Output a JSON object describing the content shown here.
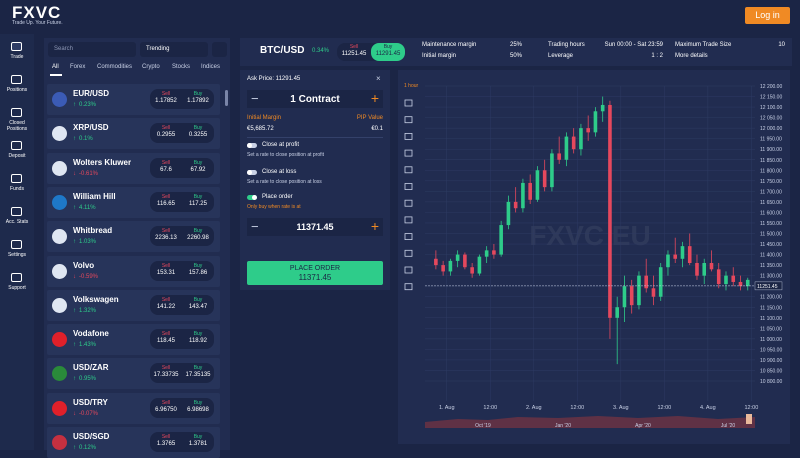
{
  "header": {
    "logo": "FXVC",
    "tagline": "Trade Up. Your Future.",
    "login": "Log in"
  },
  "sidebar": [
    "Trade",
    "Positions",
    "Closed Positions",
    "Deposit",
    "Funds",
    "Acc. Stats",
    "Settings",
    "Support"
  ],
  "instruments": {
    "search": "Search",
    "filter": "Trending",
    "tabs": [
      "All",
      "Forex",
      "Commodities",
      "Crypto",
      "Stocks",
      "Indices"
    ],
    "sell_label": "Sell",
    "buy_label": "Buy",
    "rows": [
      {
        "name": "EUR/USD",
        "change": "0.23%",
        "sell": "1.17852",
        "buy": "1.17892"
      },
      {
        "name": "XRP/USD",
        "change": "0.1%",
        "sell": "0.2955",
        "buy": "0.3255"
      },
      {
        "name": "Wolters Kluwer",
        "change": "-0.61%",
        "sell": "67.6",
        "buy": "67.92"
      },
      {
        "name": "William Hill",
        "change": "4.11%",
        "sell": "116.65",
        "buy": "117.25"
      },
      {
        "name": "Whitbread",
        "change": "1.03%",
        "sell": "2236.13",
        "buy": "2260.98"
      },
      {
        "name": "Volvo",
        "change": "-0.59%",
        "sell": "153.31",
        "buy": "157.86"
      },
      {
        "name": "Volkswagen",
        "change": "1.32%",
        "sell": "141.22",
        "buy": "143.47"
      },
      {
        "name": "Vodafone",
        "change": "1.43%",
        "sell": "118.45",
        "buy": "118.92"
      },
      {
        "name": "USD/ZAR",
        "change": "0.95%",
        "sell": "17.33735",
        "buy": "17.35135"
      },
      {
        "name": "USD/TRY",
        "change": "-0.07%",
        "sell": "6.96750",
        "buy": "6.98698"
      },
      {
        "name": "USD/SGD",
        "change": "0.12%",
        "sell": "1.3765",
        "buy": "1.3781"
      }
    ]
  },
  "symbol": {
    "name": "BTC/USD",
    "change": "0.34%",
    "sell_label": "Sell",
    "sell": "11251.45",
    "buy_label": "Buy",
    "buy": "11291.45",
    "info": [
      {
        "label": "Maintenance margin",
        "value": "25%"
      },
      {
        "label": "Initial margin",
        "value": "50%"
      },
      {
        "label": "Trading hours",
        "value": "Sun 00:00 - Sat 23:59"
      },
      {
        "label": "Leverage",
        "value": "1 : 2"
      },
      {
        "label": "Maximum Trade Size",
        "value": "10"
      }
    ],
    "more": "More details"
  },
  "order": {
    "ask": "Ask Price: 11291.45",
    "quantity": "1 Contract",
    "margin_label": "Initial Margin",
    "pip_label": "PIP Value",
    "margin": "€5,685.72",
    "pip": "€0.1",
    "profit": "Close at profit",
    "profit_hint": "Set a rate to close position at profit",
    "loss": "Close at loss",
    "loss_hint": "Set a rate to close position at loss",
    "place": "Place order",
    "place_hint": "Only buy when rate is at",
    "rate": "11371.45",
    "button": "PLACE ORDER",
    "button_value": "11371.45"
  },
  "chart_data": {
    "type": "candlestick",
    "interval": "1 hour",
    "watermark": "FXVC EU",
    "up_color": "#2ecc8a",
    "down_color": "#e5485d",
    "x": [
      0,
      2,
      4,
      6,
      8,
      10,
      12,
      14,
      16,
      18,
      20,
      22,
      24,
      26,
      28,
      30,
      32,
      34,
      36,
      38,
      40,
      42,
      44,
      46,
      48,
      50,
      52,
      54,
      56,
      58,
      60,
      62,
      64,
      66,
      68,
      70,
      72,
      74,
      76,
      78,
      80,
      82,
      84,
      86
    ],
    "open": [
      11380,
      11350,
      11320,
      11370,
      11400,
      11340,
      11310,
      11390,
      11420,
      11400,
      11540,
      11650,
      11620,
      11740,
      11660,
      11800,
      11720,
      11880,
      11850,
      11960,
      11900,
      12000,
      11980,
      12080,
      12110,
      11100,
      11150,
      11250,
      11160,
      11300,
      11240,
      11200,
      11340,
      11400,
      11380,
      11440,
      11360,
      11300,
      11360,
      11330,
      11260,
      11300,
      11270,
      11250
    ],
    "high": [
      11420,
      11370,
      11380,
      11420,
      11410,
      11360,
      11400,
      11440,
      11450,
      11560,
      11680,
      11720,
      11760,
      11780,
      11820,
      11850,
      11900,
      11960,
      11980,
      12000,
      12020,
      12060,
      12100,
      12150,
      12130,
      11200,
      11300,
      11280,
      11320,
      11380,
      11300,
      11360,
      11420,
      11480,
      11460,
      11500,
      11400,
      11380,
      11420,
      11360,
      11320,
      11340,
      11300,
      11290
    ],
    "low": [
      11330,
      11300,
      11300,
      11340,
      11330,
      11290,
      11300,
      11360,
      11380,
      11390,
      11520,
      11600,
      11600,
      11640,
      11650,
      11700,
      11700,
      11830,
      11820,
      11880,
      11870,
      11940,
      11960,
      12030,
      11000,
      10880,
      11080,
      11120,
      11140,
      11220,
      11160,
      11180,
      11300,
      11360,
      11340,
      11350,
      11280,
      11260,
      11320,
      11240,
      11230,
      11250,
      11230,
      11230
    ],
    "close": [
      11350,
      11320,
      11370,
      11400,
      11340,
      11310,
      11390,
      11420,
      11400,
      11540,
      11650,
      11620,
      11740,
      11660,
      11800,
      11720,
      11880,
      11850,
      11960,
      11900,
      12000,
      11980,
      12080,
      12110,
      11100,
      11150,
      11250,
      11160,
      11300,
      11240,
      11200,
      11340,
      11400,
      11380,
      11440,
      11360,
      11300,
      11360,
      11330,
      11260,
      11300,
      11270,
      11250,
      11280
    ],
    "xlim": [
      -3,
      88
    ],
    "xticks": [
      {
        "value": 3,
        "label": "1. Aug"
      },
      {
        "value": 15,
        "label": "12:00"
      },
      {
        "value": 27,
        "label": "2. Aug"
      },
      {
        "value": 39,
        "label": "12:00"
      },
      {
        "value": 51,
        "label": "3. Aug"
      },
      {
        "value": 63,
        "label": "12:00"
      },
      {
        "value": 75,
        "label": "4. Aug"
      },
      {
        "value": 87,
        "label": "12:00"
      }
    ],
    "ylim": [
      10800,
      12200
    ],
    "yticks": [
      {
        "value": 12200,
        "label": "12 200.00"
      },
      {
        "value": 12150,
        "label": "12 150.00"
      },
      {
        "value": 12100,
        "label": "12 100.00"
      },
      {
        "value": 12050,
        "label": "12 050.00"
      },
      {
        "value": 12000,
        "label": "12 000.00"
      },
      {
        "value": 11950,
        "label": "11 950.00"
      },
      {
        "value": 11900,
        "label": "11 900.00"
      },
      {
        "value": 11850,
        "label": "11 850.00"
      },
      {
        "value": 11800,
        "label": "11 800.00"
      },
      {
        "value": 11750,
        "label": "11 750.00"
      },
      {
        "value": 11700,
        "label": "11 700.00"
      },
      {
        "value": 11650,
        "label": "11 650.00"
      },
      {
        "value": 11600,
        "label": "11 600.00"
      },
      {
        "value": 11550,
        "label": "11 550.00"
      },
      {
        "value": 11500,
        "label": "11 500.00"
      },
      {
        "value": 11450,
        "label": "11 450.00"
      },
      {
        "value": 11400,
        "label": "11 400.00"
      },
      {
        "value": 11350,
        "label": "11 350.00"
      },
      {
        "value": 11300,
        "label": "11 300.00"
      },
      {
        "value": 11250,
        "label": "11 250.00"
      },
      {
        "value": 11200,
        "label": "11 200.00"
      },
      {
        "value": 11150,
        "label": "11 150.00"
      },
      {
        "value": 11100,
        "label": "11 100.00"
      },
      {
        "value": 11050,
        "label": "11 050.00"
      },
      {
        "value": 11000,
        "label": "11 000.00"
      },
      {
        "value": 10950,
        "label": "10 950.00"
      },
      {
        "value": 10900,
        "label": "10 900.00"
      },
      {
        "value": 10850,
        "label": "10 850.00"
      },
      {
        "value": 10800,
        "label": "10 800.00"
      }
    ],
    "price_line": {
      "value": 11251.45,
      "label": "11251.45"
    },
    "navigator": [
      "Oct '19",
      "Jan '20",
      "Apr '20",
      "Jul '20"
    ],
    "grid": true
  }
}
